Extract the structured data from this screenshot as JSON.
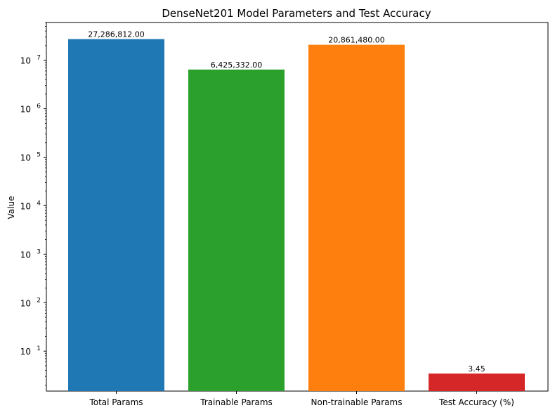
{
  "chart_data": {
    "type": "bar",
    "title": "DenseNet201 Model Parameters and Test Accuracy",
    "xlabel": "",
    "ylabel": "Value",
    "yscale": "log",
    "ylim": [
      1.5,
      60000000
    ],
    "grid": false,
    "categories": [
      "Total Params",
      "Trainable Params",
      "Non-trainable Params",
      "Test Accuracy (%)"
    ],
    "values": [
      27286812,
      6425332,
      20861480,
      3.45
    ],
    "value_labels": [
      "27,286,812.00",
      "6,425,332.00",
      "20,861,480.00",
      "3.45"
    ],
    "colors": [
      "#1f77b4",
      "#2ca02c",
      "#ff7f0e",
      "#d62728"
    ],
    "y_ticks": [
      {
        "value": 10,
        "base": "10",
        "exp": "1"
      },
      {
        "value": 100,
        "base": "10",
        "exp": "2"
      },
      {
        "value": 1000,
        "base": "10",
        "exp": "3"
      },
      {
        "value": 10000,
        "base": "10",
        "exp": "4"
      },
      {
        "value": 100000,
        "base": "10",
        "exp": "5"
      },
      {
        "value": 1000000,
        "base": "10",
        "exp": "6"
      },
      {
        "value": 10000000,
        "base": "10",
        "exp": "7"
      }
    ]
  }
}
